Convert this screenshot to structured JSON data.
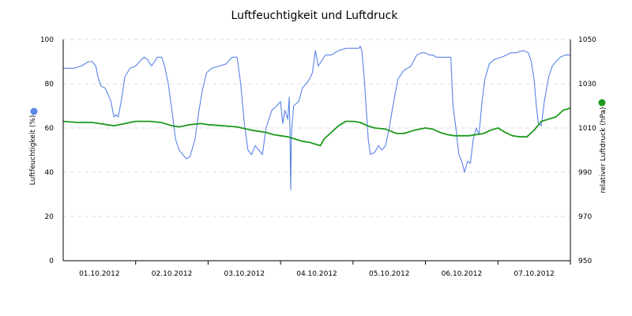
{
  "chart_data": {
    "type": "line",
    "title": "Luftfeuchtigkeit und Luftdruck",
    "y_left": {
      "label": "Luftfeuchtigkeit (%)",
      "min": 0,
      "max": 100,
      "ticks": [
        0,
        20,
        40,
        60,
        80,
        100
      ]
    },
    "y_right": {
      "label": "relativer Luftdruck (hPa)",
      "min": 950,
      "max": 1050,
      "ticks": [
        950,
        970,
        990,
        1010,
        1030,
        1050
      ]
    },
    "x_ticks": [
      "01.10.2012",
      "02.10.2012",
      "03.10.2012",
      "04.10.2012",
      "05.10.2012",
      "06.10.2012",
      "07.10.2012"
    ],
    "grid": true,
    "legend": "markers beside axes",
    "series": [
      {
        "axis": "left",
        "color": "#5b84e6",
        "points": [
          [
            0.0,
            87
          ],
          [
            0.15,
            87
          ],
          [
            0.25,
            88
          ],
          [
            0.35,
            90
          ],
          [
            0.4,
            90
          ],
          [
            0.45,
            88
          ],
          [
            0.48,
            83
          ],
          [
            0.52,
            79
          ],
          [
            0.58,
            78
          ],
          [
            0.62,
            75
          ],
          [
            0.66,
            72
          ],
          [
            0.7,
            65
          ],
          [
            0.73,
            66
          ],
          [
            0.76,
            65
          ],
          [
            0.8,
            72
          ],
          [
            0.85,
            83
          ],
          [
            0.92,
            87
          ],
          [
            1.0,
            88
          ],
          [
            1.08,
            91
          ],
          [
            1.12,
            92
          ],
          [
            1.16,
            91
          ],
          [
            1.22,
            88
          ],
          [
            1.3,
            92
          ],
          [
            1.36,
            92
          ],
          [
            1.4,
            88
          ],
          [
            1.45,
            80
          ],
          [
            1.5,
            68
          ],
          [
            1.55,
            55
          ],
          [
            1.6,
            50
          ],
          [
            1.65,
            48
          ],
          [
            1.7,
            46
          ],
          [
            1.75,
            47
          ],
          [
            1.82,
            55
          ],
          [
            1.87,
            67
          ],
          [
            1.92,
            77
          ],
          [
            1.98,
            85
          ],
          [
            2.05,
            87
          ],
          [
            2.15,
            88
          ],
          [
            2.25,
            89
          ],
          [
            2.33,
            92
          ],
          [
            2.4,
            92
          ],
          [
            2.45,
            80
          ],
          [
            2.5,
            62
          ],
          [
            2.55,
            50
          ],
          [
            2.6,
            48
          ],
          [
            2.65,
            52
          ],
          [
            2.7,
            50
          ],
          [
            2.75,
            48
          ],
          [
            2.8,
            60
          ],
          [
            2.88,
            68
          ],
          [
            2.95,
            70
          ],
          [
            3.0,
            72
          ],
          [
            3.03,
            62
          ],
          [
            3.06,
            68
          ],
          [
            3.1,
            64
          ],
          [
            3.12,
            74
          ],
          [
            3.13,
            57
          ],
          [
            3.14,
            32
          ],
          [
            3.15,
            58
          ],
          [
            3.18,
            70
          ],
          [
            3.25,
            72
          ],
          [
            3.3,
            78
          ],
          [
            3.35,
            80
          ],
          [
            3.4,
            82
          ],
          [
            3.44,
            85
          ],
          [
            3.48,
            95
          ],
          [
            3.52,
            88
          ],
          [
            3.56,
            90
          ],
          [
            3.62,
            93
          ],
          [
            3.7,
            93
          ],
          [
            3.8,
            95
          ],
          [
            3.9,
            96
          ],
          [
            4.0,
            96
          ],
          [
            4.08,
            96
          ],
          [
            4.1,
            97
          ],
          [
            4.12,
            95
          ],
          [
            4.15,
            85
          ],
          [
            4.18,
            70
          ],
          [
            4.21,
            55
          ],
          [
            4.24,
            48
          ],
          [
            4.3,
            49
          ],
          [
            4.35,
            52
          ],
          [
            4.4,
            50
          ],
          [
            4.45,
            52
          ],
          [
            4.5,
            60
          ],
          [
            4.55,
            70
          ],
          [
            4.62,
            82
          ],
          [
            4.7,
            86
          ],
          [
            4.8,
            88
          ],
          [
            4.88,
            93
          ],
          [
            4.95,
            94
          ],
          [
            5.0,
            94
          ],
          [
            5.05,
            93
          ],
          [
            5.1,
            93
          ],
          [
            5.15,
            92
          ],
          [
            5.2,
            92
          ],
          [
            5.3,
            92
          ],
          [
            5.35,
            92
          ],
          [
            5.38,
            70
          ],
          [
            5.42,
            60
          ],
          [
            5.46,
            48
          ],
          [
            5.5,
            45
          ],
          [
            5.54,
            40
          ],
          [
            5.58,
            45
          ],
          [
            5.62,
            44
          ],
          [
            5.66,
            55
          ],
          [
            5.7,
            60
          ],
          [
            5.74,
            57
          ],
          [
            5.78,
            72
          ],
          [
            5.82,
            82
          ],
          [
            5.88,
            89
          ],
          [
            5.95,
            91
          ],
          [
            6.05,
            92
          ],
          [
            6.12,
            93
          ],
          [
            6.18,
            94
          ],
          [
            6.25,
            94
          ],
          [
            6.35,
            95
          ],
          [
            6.42,
            94
          ],
          [
            6.46,
            90
          ],
          [
            6.5,
            82
          ],
          [
            6.53,
            70
          ],
          [
            6.56,
            62
          ],
          [
            6.6,
            61
          ],
          [
            6.64,
            72
          ],
          [
            6.7,
            83
          ],
          [
            6.75,
            88
          ],
          [
            6.8,
            90
          ],
          [
            6.86,
            92
          ],
          [
            6.93,
            93
          ],
          [
            7.0,
            93
          ]
        ]
      },
      {
        "axis": "right",
        "color": "#1c9a1c",
        "points": [
          [
            0.0,
            1013
          ],
          [
            0.2,
            1012.5
          ],
          [
            0.4,
            1012.5
          ],
          [
            0.6,
            1011.5
          ],
          [
            0.7,
            1011
          ],
          [
            0.85,
            1012
          ],
          [
            1.0,
            1013
          ],
          [
            1.2,
            1013
          ],
          [
            1.35,
            1012.5
          ],
          [
            1.5,
            1011
          ],
          [
            1.6,
            1010.5
          ],
          [
            1.75,
            1011.5
          ],
          [
            1.9,
            1012
          ],
          [
            2.0,
            1011.5
          ],
          [
            2.2,
            1011
          ],
          [
            2.4,
            1010.5
          ],
          [
            2.6,
            1009
          ],
          [
            2.8,
            1008
          ],
          [
            2.9,
            1007
          ],
          [
            3.0,
            1006.5
          ],
          [
            3.1,
            1006
          ],
          [
            3.2,
            1005
          ],
          [
            3.3,
            1004
          ],
          [
            3.4,
            1003.5
          ],
          [
            3.5,
            1002.5
          ],
          [
            3.55,
            1002
          ],
          [
            3.6,
            1005
          ],
          [
            3.7,
            1008
          ],
          [
            3.8,
            1011
          ],
          [
            3.9,
            1013
          ],
          [
            4.0,
            1013
          ],
          [
            4.1,
            1012.5
          ],
          [
            4.2,
            1011
          ],
          [
            4.3,
            1010
          ],
          [
            4.45,
            1009.5
          ],
          [
            4.6,
            1007.5
          ],
          [
            4.7,
            1007.5
          ],
          [
            4.85,
            1009
          ],
          [
            5.0,
            1010
          ],
          [
            5.1,
            1009.5
          ],
          [
            5.2,
            1008
          ],
          [
            5.3,
            1007
          ],
          [
            5.4,
            1006.5
          ],
          [
            5.5,
            1006.5
          ],
          [
            5.6,
            1006.5
          ],
          [
            5.7,
            1007
          ],
          [
            5.8,
            1007.5
          ],
          [
            5.9,
            1009
          ],
          [
            6.0,
            1010
          ],
          [
            6.1,
            1008
          ],
          [
            6.2,
            1006.5
          ],
          [
            6.3,
            1006
          ],
          [
            6.4,
            1006
          ],
          [
            6.5,
            1009
          ],
          [
            6.6,
            1013
          ],
          [
            6.7,
            1014
          ],
          [
            6.8,
            1015
          ],
          [
            6.9,
            1018
          ],
          [
            7.0,
            1019
          ]
        ]
      }
    ]
  }
}
